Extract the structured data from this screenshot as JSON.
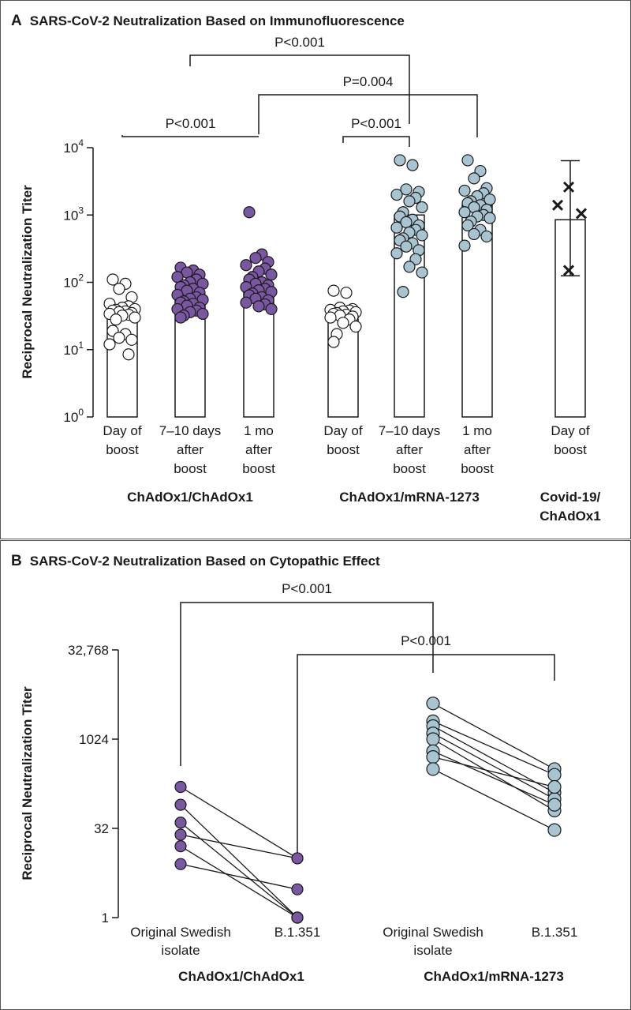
{
  "chart_data": [
    {
      "panel": "A",
      "type": "bar",
      "title": "SARS-CoV-2 Neutralization Based on Immunofluorescence",
      "ylabel": "Reciprocal Neutralization Titer",
      "yscale": "log10",
      "ylim": [
        1,
        10000
      ],
      "yticks": [
        {
          "value": 1,
          "base": "10",
          "exp": "0"
        },
        {
          "value": 10,
          "base": "10",
          "exp": "1"
        },
        {
          "value": 100,
          "base": "10",
          "exp": "2"
        },
        {
          "value": 1000,
          "base": "10",
          "exp": "3"
        },
        {
          "value": 10000,
          "base": "10",
          "exp": "4"
        }
      ],
      "groups": [
        {
          "label": "ChAdOx1/ChAdOx1"
        },
        {
          "label": "ChAdOx1/mRNA-1273"
        },
        {
          "label": "Covid-19/ChAdOx1"
        }
      ],
      "bars": [
        {
          "group": 0,
          "label": [
            "Day of",
            "boost"
          ],
          "value": 37,
          "marker": "circle-open",
          "points": [
            110,
            95,
            80,
            60,
            48,
            44,
            42,
            40,
            39,
            38,
            37,
            36,
            35,
            34,
            33,
            32,
            30,
            28,
            19,
            17,
            15,
            14,
            12,
            8.5
          ]
        },
        {
          "group": 0,
          "label": [
            "7–10 days",
            "after",
            "boost"
          ],
          "value": 60,
          "marker": "circle-purple",
          "points": [
            165,
            150,
            140,
            130,
            120,
            110,
            100,
            95,
            90,
            85,
            80,
            75,
            70,
            65,
            60,
            57,
            55,
            52,
            50,
            48,
            45,
            42,
            40,
            38,
            36,
            34,
            32,
            30
          ]
        },
        {
          "group": 0,
          "label": [
            "1 mo",
            "after",
            "boost"
          ],
          "value": 80,
          "marker": "circle-purple",
          "points": [
            1100,
            260,
            230,
            200,
            180,
            160,
            145,
            130,
            120,
            110,
            100,
            95,
            90,
            85,
            80,
            76,
            72,
            68,
            64,
            60,
            57,
            54,
            50,
            47,
            44,
            40
          ]
        },
        {
          "group": 1,
          "label": [
            "Day of",
            "boost"
          ],
          "value": 37,
          "marker": "circle-open",
          "points": [
            75,
            70,
            42,
            40,
            39,
            38,
            37,
            36,
            35,
            34,
            33,
            32,
            31,
            30,
            28,
            25,
            22,
            17,
            13
          ]
        },
        {
          "group": 1,
          "label": [
            "7–10 days",
            "after",
            "boost"
          ],
          "value": 1000,
          "marker": "circle-blue",
          "points": [
            6500,
            5500,
            2400,
            2200,
            2000,
            1800,
            1600,
            1300,
            1100,
            950,
            850,
            780,
            700,
            650,
            600,
            550,
            500,
            450,
            420,
            380,
            340,
            300,
            270,
            220,
            170,
            140,
            72
          ]
        },
        {
          "group": 1,
          "label": [
            "1 mo",
            "after",
            "boost"
          ],
          "value": 1400,
          "marker": "circle-blue",
          "points": [
            6500,
            4500,
            3500,
            2500,
            2300,
            2100,
            1900,
            1700,
            1600,
            1500,
            1400,
            1300,
            1200,
            1100,
            1000,
            950,
            900,
            800,
            700,
            600,
            520,
            480,
            350
          ]
        },
        {
          "group": 2,
          "label": [
            "Day of",
            "boost"
          ],
          "value": 850,
          "marker": "x",
          "error_high": 6400,
          "error_low": 125,
          "points": [
            2600,
            1400,
            1050,
            150
          ]
        }
      ],
      "comparisons": [
        {
          "from_bar": 0,
          "to_bar": 2,
          "label": "P<0.001"
        },
        {
          "from_bar": 1,
          "to_bar": 4,
          "label": "P<0.001"
        },
        {
          "from_bar": 2,
          "to_bar": 5,
          "label": "P=0.004"
        },
        {
          "from_bar": 3,
          "to_bar": 4,
          "label": "P<0.001"
        }
      ]
    },
    {
      "panel": "B",
      "type": "line",
      "title": "SARS-CoV-2 Neutralization Based on Cytopathic Effect",
      "ylabel": "Reciprocal Neutralization Titer",
      "yscale": "log2",
      "ylim": [
        1,
        32768
      ],
      "yticks": [
        {
          "value": 1,
          "label": "1"
        },
        {
          "value": 32,
          "label": "32"
        },
        {
          "value": 1024,
          "label": "1024"
        },
        {
          "value": 32768,
          "label": "32,768"
        }
      ],
      "categories": [
        [
          "Original Swedish",
          "isolate"
        ],
        [
          "B.1.351"
        ],
        [
          "Original Swedish",
          "isolate"
        ],
        [
          "B.1.351"
        ]
      ],
      "groups": [
        {
          "label": "ChAdOx1/ChAdOx1",
          "color": "#7a57a1",
          "pairs": [
            [
              160,
              10
            ],
            [
              80,
              1
            ],
            [
              40,
              1
            ],
            [
              25,
              10
            ],
            [
              16,
              1
            ],
            [
              8,
              3
            ]
          ]
        },
        {
          "label": "ChAdOx1/mRNA-1273",
          "color": "#a9c4d1",
          "pairs": [
            [
              4096,
              320
            ],
            [
              2048,
              256
            ],
            [
              1700,
              128
            ],
            [
              1280,
              100
            ],
            [
              1024,
              64
            ],
            [
              640,
              80
            ],
            [
              512,
              160
            ],
            [
              320,
              30
            ]
          ]
        }
      ],
      "comparisons": [
        {
          "from_cat": 0,
          "to_cat": 2,
          "label": "P<0.001"
        },
        {
          "from_cat": 1,
          "to_cat": 3,
          "label": "P<0.001"
        }
      ]
    }
  ]
}
